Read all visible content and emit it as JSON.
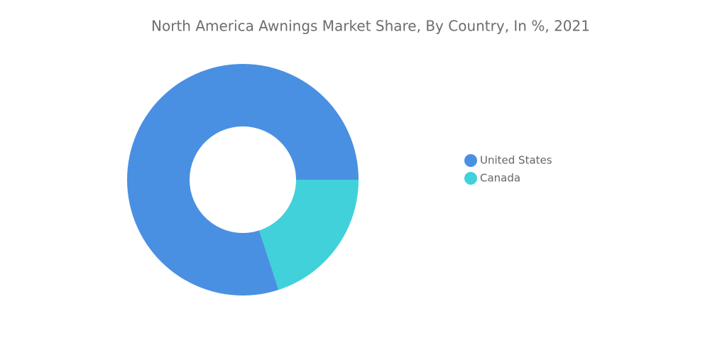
{
  "chart_data": {
    "type": "donut",
    "title": "North America Awnings Market Share, By Country, In %, 2021",
    "categories": [
      "United States",
      "Canada"
    ],
    "values": [
      80,
      20
    ],
    "colors": [
      "#4a90e2",
      "#40d1da"
    ],
    "legend": "right"
  }
}
